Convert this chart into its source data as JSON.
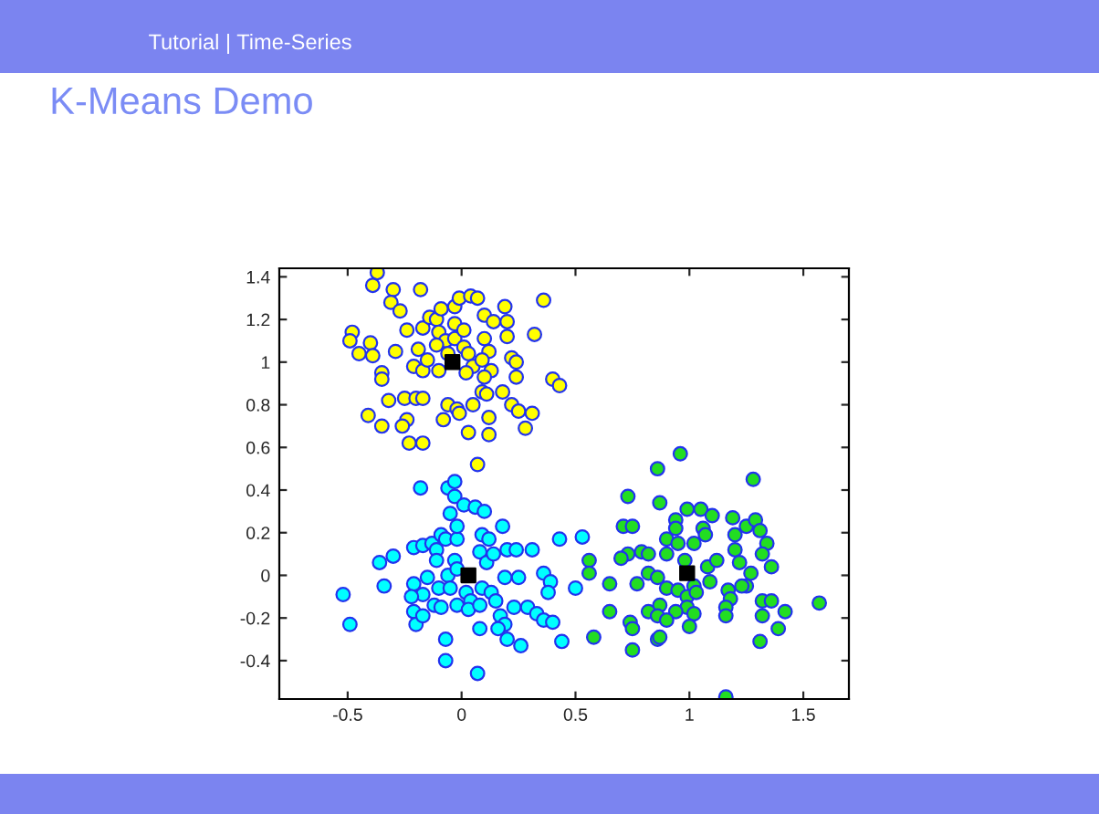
{
  "chart_data": {
    "type": "scatter",
    "title": "K-Means Demo",
    "annotations": [
      "Tutorial | Time-Series"
    ],
    "xlim": [
      -0.8,
      1.7
    ],
    "ylim": [
      -0.58,
      1.44
    ],
    "xticks": [
      -0.5,
      0,
      0.5,
      1,
      1.5
    ],
    "yticks": [
      -0.4,
      -0.2,
      0,
      0.2,
      0.4,
      0.6,
      0.8,
      1,
      1.2,
      1.4
    ],
    "grid": false,
    "marker": "circle",
    "series": [
      {
        "color": "#ffff00",
        "x": [
          -0.37,
          -0.39,
          -0.3,
          -0.18,
          -0.31,
          -0.27,
          -0.48,
          -0.49,
          -0.4,
          -0.45,
          -0.39,
          -0.35,
          -0.35,
          -0.29,
          -0.24,
          -0.19,
          -0.21,
          -0.17,
          -0.15,
          -0.17,
          -0.14,
          -0.11,
          -0.09,
          -0.1,
          -0.07,
          -0.11,
          -0.1,
          -0.03,
          -0.01,
          0.04,
          0.07,
          -0.03,
          -0.03,
          -0.06,
          0.01,
          0.01,
          0.03,
          0.05,
          0.02,
          0.1,
          0.14,
          0.19,
          0.2,
          0.2,
          0.1,
          0.12,
          0.09,
          0.13,
          0.1,
          0.09,
          0.11,
          0.18,
          0.22,
          0.22,
          0.24,
          0.24,
          0.32,
          0.36,
          0.4,
          0.43,
          -0.06,
          -0.02,
          -0.01,
          0.05,
          0.12,
          0.25,
          0.31,
          0.28,
          0.03,
          0.12,
          -0.08,
          -0.24,
          -0.26,
          -0.35,
          -0.41,
          -0.32,
          -0.25,
          -0.2,
          -0.17,
          -0.23,
          -0.17,
          0.07
        ],
        "values": [
          1.42,
          1.36,
          1.34,
          1.34,
          1.28,
          1.24,
          1.14,
          1.1,
          1.09,
          1.04,
          1.03,
          0.95,
          0.92,
          1.05,
          1.15,
          1.06,
          0.98,
          0.96,
          1.01,
          1.16,
          1.21,
          1.2,
          1.25,
          1.14,
          1.1,
          1.08,
          0.96,
          1.26,
          1.3,
          1.31,
          1.3,
          1.18,
          1.11,
          1.04,
          1.15,
          1.07,
          1.04,
          0.98,
          0.95,
          1.22,
          1.19,
          1.26,
          1.19,
          1.12,
          1.11,
          1.05,
          1.01,
          0.96,
          0.93,
          0.86,
          0.85,
          0.86,
          0.8,
          1.02,
          1.0,
          0.93,
          1.13,
          1.29,
          0.92,
          0.89,
          0.8,
          0.78,
          0.76,
          0.8,
          0.74,
          0.77,
          0.76,
          0.69,
          0.67,
          0.66,
          0.73,
          0.73,
          0.7,
          0.7,
          0.75,
          0.82,
          0.83,
          0.83,
          0.83,
          0.62,
          0.62,
          0.52
        ]
      },
      {
        "color": "#00ffff",
        "x": [
          -0.52,
          -0.49,
          -0.36,
          -0.3,
          -0.34,
          -0.18,
          -0.21,
          -0.17,
          -0.13,
          -0.11,
          -0.09,
          -0.07,
          -0.02,
          -0.02,
          -0.05,
          -0.06,
          -0.03,
          -0.03,
          0.01,
          0.06,
          0.1,
          -0.11,
          -0.03,
          0.09,
          0.12,
          0.08,
          0.11,
          0.14,
          0.18,
          0.2,
          0.24,
          0.31,
          0.43,
          0.53,
          -0.21,
          -0.17,
          -0.22,
          -0.21,
          -0.2,
          -0.17,
          -0.15,
          -0.1,
          -0.12,
          -0.09,
          -0.06,
          -0.05,
          -0.02,
          0.02,
          0.04,
          -0.02,
          0.03,
          0.08,
          0.09,
          0.13,
          0.15,
          0.17,
          0.19,
          0.16,
          0.2,
          0.08,
          -0.07,
          -0.07,
          0.07,
          0.26,
          0.19,
          0.25,
          0.23,
          0.29,
          0.33,
          0.36,
          0.4,
          0.36,
          0.39,
          0.38,
          0.5,
          0.44
        ],
        "values": [
          -0.09,
          -0.23,
          0.06,
          0.09,
          -0.05,
          0.41,
          0.13,
          0.14,
          0.15,
          0.12,
          0.19,
          0.17,
          0.17,
          0.23,
          0.29,
          0.41,
          0.44,
          0.37,
          0.33,
          0.32,
          0.3,
          0.07,
          0.07,
          0.19,
          0.17,
          0.11,
          0.06,
          0.1,
          0.23,
          0.12,
          0.12,
          0.12,
          0.17,
          0.18,
          -0.04,
          -0.09,
          -0.1,
          -0.17,
          -0.23,
          -0.19,
          -0.01,
          -0.06,
          -0.14,
          -0.15,
          0.0,
          -0.06,
          0.03,
          -0.08,
          -0.12,
          -0.14,
          -0.16,
          -0.14,
          -0.06,
          -0.08,
          -0.12,
          -0.19,
          -0.23,
          -0.25,
          -0.3,
          -0.25,
          -0.3,
          -0.4,
          -0.46,
          -0.33,
          -0.01,
          -0.01,
          -0.15,
          -0.15,
          -0.18,
          -0.21,
          -0.22,
          0.01,
          -0.03,
          -0.08,
          -0.06,
          -0.31
        ]
      },
      {
        "color": "#22dd22",
        "x": [
          0.96,
          0.86,
          1.28,
          0.73,
          0.87,
          0.99,
          1.05,
          1.1,
          0.94,
          0.71,
          0.75,
          0.94,
          1.06,
          1.07,
          1.19,
          1.25,
          1.29,
          1.31,
          1.34,
          1.32,
          1.36,
          1.2,
          1.2,
          1.22,
          1.27,
          1.25,
          1.23,
          0.9,
          0.95,
          1.02,
          0.73,
          0.7,
          0.79,
          0.82,
          0.9,
          0.98,
          1.08,
          1.12,
          0.56,
          0.56,
          0.65,
          0.77,
          0.82,
          0.86,
          0.9,
          0.95,
          1.02,
          1.09,
          0.99,
          1.03,
          0.99,
          1.02,
          0.94,
          0.87,
          0.82,
          0.86,
          0.9,
          0.74,
          0.75,
          0.65,
          0.58,
          0.86,
          0.87,
          0.75,
          1.0,
          1.17,
          1.18,
          1.16,
          1.16,
          1.32,
          1.36,
          1.42,
          1.32,
          1.39,
          1.31,
          1.57,
          1.16
        ],
        "values": [
          0.57,
          0.5,
          0.45,
          0.37,
          0.34,
          0.31,
          0.31,
          0.28,
          0.26,
          0.23,
          0.23,
          0.22,
          0.22,
          0.19,
          0.27,
          0.23,
          0.26,
          0.21,
          0.15,
          0.1,
          0.04,
          0.19,
          0.12,
          0.06,
          0.01,
          -0.05,
          -0.05,
          0.17,
          0.15,
          0.15,
          0.1,
          0.08,
          0.11,
          0.1,
          0.1,
          0.07,
          0.04,
          0.07,
          0.07,
          0.01,
          -0.04,
          -0.04,
          0.01,
          -0.01,
          -0.06,
          -0.07,
          -0.05,
          -0.03,
          -0.1,
          -0.08,
          -0.15,
          -0.18,
          -0.17,
          -0.14,
          -0.17,
          -0.19,
          -0.21,
          -0.22,
          -0.25,
          -0.17,
          -0.29,
          -0.3,
          -0.29,
          -0.35,
          -0.24,
          -0.07,
          -0.11,
          -0.15,
          -0.19,
          -0.12,
          -0.12,
          -0.17,
          -0.19,
          -0.25,
          -0.31,
          -0.13,
          -0.57
        ]
      },
      {
        "color": "#000000",
        "marker": "square",
        "x": [
          -0.04,
          0.03,
          0.99
        ],
        "values": [
          1.0,
          0.0,
          0.01
        ]
      }
    ]
  }
}
